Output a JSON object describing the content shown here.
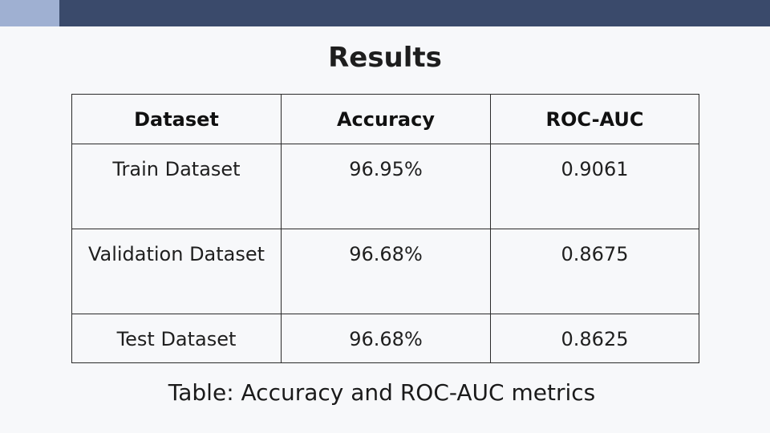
{
  "slide": {
    "title": "Results",
    "caption": "Table: Accuracy and ROC-AUC metrics"
  },
  "table": {
    "headers": [
      "Dataset",
      "Accuracy",
      "ROC-AUC"
    ],
    "rows": [
      [
        "Train Dataset",
        "96.95%",
        "0.9061"
      ],
      [
        "Validation Dataset",
        "96.68%",
        "0.8675"
      ],
      [
        "Test Dataset",
        "96.68%",
        "0.8625"
      ]
    ]
  },
  "colors": {
    "top_bar": "#3a4a6b",
    "top_bar_accent": "#9fb0d2",
    "background": "#f7f8fa"
  }
}
